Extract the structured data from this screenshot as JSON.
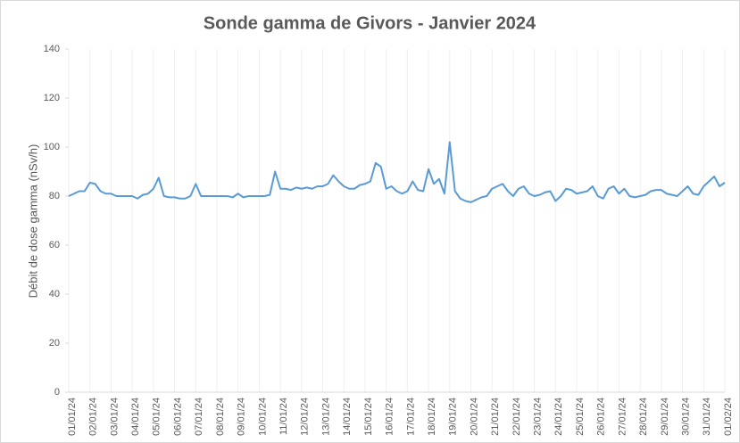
{
  "chart_data": {
    "type": "line",
    "title": "Sonde gamma de Givors - Janvier 2024",
    "y_label": "Débit de dose gamma (nSv/h)",
    "categories": [
      "01/01/24",
      null,
      null,
      null,
      "02/01/24",
      null,
      null,
      null,
      "03/01/24",
      null,
      null,
      null,
      "04/01/24",
      null,
      null,
      null,
      "05/01/24",
      null,
      null,
      null,
      "06/01/24",
      null,
      null,
      null,
      "07/01/24",
      null,
      null,
      null,
      "08/01/24",
      null,
      null,
      null,
      "09/01/24",
      null,
      null,
      null,
      "10/01/24",
      null,
      null,
      null,
      "11/01/24",
      null,
      null,
      null,
      "12/01/24",
      null,
      null,
      null,
      "13/01/24",
      null,
      null,
      null,
      "14/01/24",
      null,
      null,
      null,
      "15/01/24",
      null,
      null,
      null,
      "16/01/24",
      null,
      null,
      null,
      "17/01/24",
      null,
      null,
      null,
      "18/01/24",
      null,
      null,
      null,
      "19/01/24",
      null,
      null,
      null,
      "20/01/24",
      null,
      null,
      null,
      "21/01/24",
      null,
      null,
      null,
      "22/01/24",
      null,
      null,
      null,
      "23/01/24",
      null,
      null,
      null,
      "24/01/24",
      null,
      null,
      null,
      "25/01/24",
      null,
      null,
      null,
      "26/01/24",
      null,
      null,
      null,
      "27/01/24",
      null,
      null,
      null,
      "28/01/24",
      null,
      null,
      null,
      "29/01/24",
      null,
      null,
      null,
      "30/01/24",
      null,
      null,
      null,
      "31/01/24",
      null,
      null,
      null,
      "01/02/24"
    ],
    "values": [
      80,
      81,
      82,
      82,
      85.5,
      85,
      82,
      81,
      81,
      80,
      80,
      80,
      80,
      79,
      80.5,
      81,
      83,
      87.5,
      80,
      79.5,
      79.5,
      79,
      79,
      80,
      85,
      80,
      80,
      80,
      80,
      80,
      80,
      79.5,
      81,
      79.5,
      80,
      80,
      80,
      80,
      80.5,
      90,
      83,
      83,
      82.5,
      83.5,
      83,
      83.5,
      83,
      84,
      84,
      85,
      88.5,
      86,
      84,
      83,
      83,
      84.5,
      85,
      86,
      93.5,
      92,
      83,
      84,
      82,
      81,
      82,
      86,
      82.5,
      82,
      91,
      85,
      87,
      81,
      102,
      82,
      79,
      78,
      77.5,
      78.5,
      79.5,
      80,
      83,
      84,
      85,
      82,
      80,
      83,
      84,
      81,
      80,
      80.5,
      81.5,
      82,
      78,
      80,
      83,
      82.5,
      81,
      81.5,
      82,
      84,
      80,
      79,
      83,
      84,
      81,
      83,
      80,
      79.5,
      80,
      80.5,
      82,
      82.5,
      82.5,
      81,
      80.5,
      80,
      82,
      84,
      81,
      80.5,
      84,
      86,
      88,
      84,
      85.5
    ],
    "color": "#5b9bd5",
    "ylim": [
      0,
      140
    ],
    "yticks": [
      0,
      20,
      40,
      60,
      80,
      100,
      120,
      140
    ],
    "grid": true
  }
}
